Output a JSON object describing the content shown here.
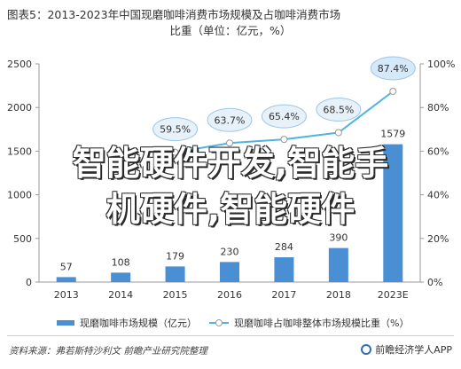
{
  "title": {
    "line1": "图表5：2013-2023年中国现磨咖啡消费市场规模及占咖啡消费市场",
    "line2": "比重（单位：亿元，%）"
  },
  "overlay_text": {
    "line1": "智能硬件开发,智能手",
    "line2": "机硬件,智能硬件"
  },
  "legend": {
    "bar_label": "现磨咖啡市场规模（亿元）",
    "line_label": "现磨咖啡占咖啡整体市场规模比重（%）"
  },
  "footer": {
    "source": "资料来源：弗若斯特沙利文 前瞻产业研究院整理",
    "brand": "前瞻经济学人APP"
  },
  "colors": {
    "bar": "#4a8fd3",
    "line": "#4fb3e3",
    "bubble_fill": "#e7f1fa",
    "bubble_stroke": "#9ec6e8",
    "last_bubble_fill": "#d6e9f8"
  },
  "chart_data": {
    "type": "bar",
    "categories": [
      "2013",
      "2014",
      "2015",
      "2016",
      "2017",
      "2018",
      "2023E"
    ],
    "series": [
      {
        "values": [
          57,
          108,
          179,
          230,
          284,
          390,
          1579
        ],
        "axis": "left",
        "type": "bar"
      },
      {
        "values": [
          null,
          null,
          59.5,
          63.7,
          65.4,
          68.5,
          87.4
        ],
        "axis": "right",
        "type": "line",
        "unit": "%"
      }
    ],
    "bar_labels": [
      "57",
      "108",
      "179",
      "230",
      "284",
      "390",
      "1579"
    ],
    "line_labels": [
      "",
      "",
      "59.5%",
      "63.7%",
      "65.4%",
      "68.5%",
      "87.4%"
    ],
    "left_axis": {
      "ylim": [
        0,
        2500
      ],
      "ticks": [
        "0",
        "500",
        "1000",
        "1500",
        "2000",
        "2500"
      ]
    },
    "right_axis": {
      "ylim": [
        0,
        100
      ],
      "ticks": [
        "0%",
        "20%",
        "40%",
        "60%",
        "80%",
        "100%"
      ]
    },
    "grid": false,
    "legend_position": "bottom"
  }
}
